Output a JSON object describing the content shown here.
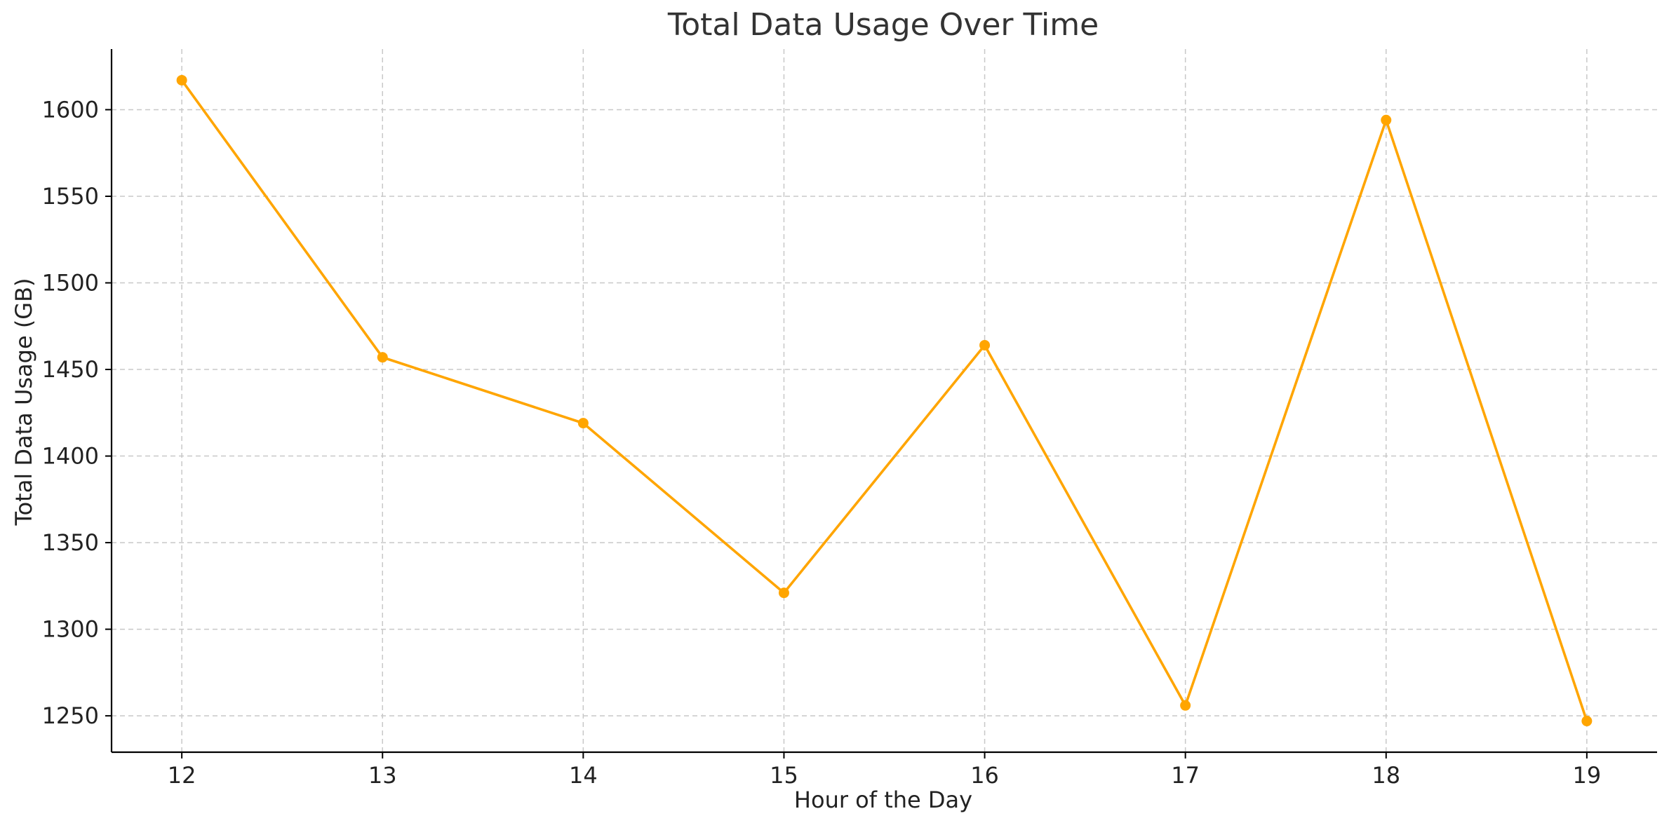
{
  "chart_data": {
    "type": "line",
    "title": "Total Data Usage Over Time",
    "xlabel": "Hour of the Day",
    "ylabel": "Total Data Usage (GB)",
    "x": [
      12,
      13,
      14,
      15,
      16,
      17,
      18,
      19
    ],
    "series": [
      {
        "values": [
          1617,
          1457,
          1419,
          1321,
          1464,
          1256,
          1594,
          1247
        ],
        "color": "#FFA500"
      }
    ],
    "x_ticks": [
      "12",
      "13",
      "14",
      "15",
      "16",
      "17",
      "18",
      "19"
    ],
    "y_ticks": [
      "1250",
      "1300",
      "1350",
      "1400",
      "1450",
      "1500",
      "1550",
      "1600"
    ],
    "xlim": [
      11.65,
      19.35
    ],
    "ylim": [
      1229,
      1635
    ],
    "grid": true,
    "legend": "none"
  }
}
